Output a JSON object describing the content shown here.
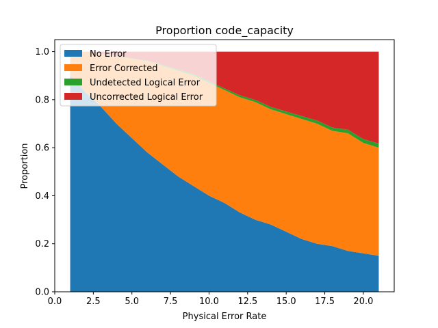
{
  "chart_data": {
    "type": "area",
    "title": "Proportion code_capacity",
    "xlabel": "Physical Error Rate",
    "ylabel": "Proportion",
    "xlim": [
      0.0,
      22.0
    ],
    "ylim": [
      0.0,
      1.05
    ],
    "xticks": [
      0.0,
      2.5,
      5.0,
      7.5,
      10.0,
      12.5,
      15.0,
      17.5,
      20.0
    ],
    "xtick_labels": [
      "0.0",
      "2.5",
      "5.0",
      "7.5",
      "10.0",
      "12.5",
      "15.0",
      "17.5",
      "20.0"
    ],
    "yticks": [
      0.0,
      0.2,
      0.4,
      0.6,
      0.8,
      1.0
    ],
    "ytick_labels": [
      "0.0",
      "0.2",
      "0.4",
      "0.6",
      "0.8",
      "1.0"
    ],
    "grid": false,
    "legend_position": "top-left",
    "x": [
      1,
      2,
      3,
      4,
      5,
      6,
      7,
      8,
      9,
      10,
      11,
      12,
      13,
      14,
      15,
      16,
      17,
      18,
      19,
      20,
      21
    ],
    "series": [
      {
        "name": "No Error",
        "color": "#1f77b4",
        "values": [
          0.9,
          0.83,
          0.77,
          0.7,
          0.64,
          0.58,
          0.53,
          0.48,
          0.44,
          0.4,
          0.37,
          0.33,
          0.3,
          0.28,
          0.25,
          0.22,
          0.2,
          0.19,
          0.17,
          0.16,
          0.15
        ]
      },
      {
        "name": "Error Corrected",
        "color": "#ff7f0e",
        "values": [
          0.1,
          0.17,
          0.22,
          0.28,
          0.33,
          0.38,
          0.41,
          0.44,
          0.46,
          0.47,
          0.47,
          0.48,
          0.49,
          0.48,
          0.49,
          0.5,
          0.5,
          0.48,
          0.49,
          0.46,
          0.45
        ]
      },
      {
        "name": "Undetected Logical Error",
        "color": "#2ca02c",
        "values": [
          0.0,
          0.0,
          0.001,
          0.002,
          0.002,
          0.003,
          0.004,
          0.005,
          0.006,
          0.006,
          0.007,
          0.008,
          0.009,
          0.01,
          0.011,
          0.012,
          0.013,
          0.014,
          0.015,
          0.016,
          0.017
        ]
      },
      {
        "name": "Uncorrected Logical Error",
        "color": "#d62728",
        "values": [
          0.0,
          0.0,
          0.009,
          0.018,
          0.028,
          0.037,
          0.056,
          0.075,
          0.094,
          0.124,
          0.153,
          0.182,
          0.201,
          0.23,
          0.249,
          0.268,
          0.287,
          0.316,
          0.325,
          0.364,
          0.383
        ]
      }
    ]
  }
}
